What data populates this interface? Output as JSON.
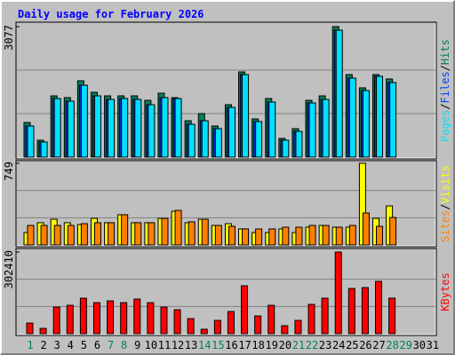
{
  "chart_data": [
    {
      "type": "bar",
      "title": "Daily usage for February 2026",
      "separator": "/",
      "ylim": [
        0,
        3077
      ],
      "yticks": [
        3077
      ],
      "series": [
        {
          "name": "Hits",
          "color": "#00805c",
          "values": [
            816,
            398,
            1444,
            1402,
            1800,
            1528,
            1444,
            1444,
            1444,
            1339,
            1507,
            1402,
            858,
            1026,
            733,
            1235,
            2009,
            900,
            1381,
            440,
            670,
            1339,
            1444,
            3077,
            1946,
            1633,
            1946,
            1842,
            null,
            null,
            null
          ]
        },
        {
          "name": "Files",
          "color": "#0040ff",
          "values": [
            733,
            356,
            1381,
            1319,
            1695,
            1444,
            1360,
            1381,
            1360,
            1235,
            1402,
            1381,
            774,
            858,
            670,
            1172,
            1946,
            837,
            1298,
            398,
            607,
            1277,
            1360,
            2993,
            1863,
            1570,
            1905,
            1758,
            null,
            null,
            null
          ]
        },
        {
          "name": "Pages",
          "color": "#00e0ff",
          "values": [
            733,
            356,
            1381,
            1319,
            1695,
            1444,
            1360,
            1381,
            1360,
            1235,
            1402,
            1381,
            774,
            858,
            670,
            1172,
            1946,
            837,
            1298,
            398,
            607,
            1277,
            1360,
            2993,
            1863,
            1570,
            1905,
            1758,
            null,
            null,
            null
          ]
        }
      ]
    },
    {
      "type": "bar",
      "separator": "/",
      "ylim": [
        0,
        749
      ],
      "yticks": [
        749
      ],
      "series": [
        {
          "name": "Visits",
          "color": "#ffff00",
          "values": [
            114,
            204,
            236,
            204,
            187,
            244,
            204,
            277,
            204,
            204,
            244,
            309,
            204,
            236,
            179,
            195,
            147,
            114,
            114,
            147,
            114,
            163,
            179,
            163,
            163,
            749,
            244,
            358,
            null,
            null,
            null
          ]
        },
        {
          "name": "Sites",
          "color": "#ff8000",
          "values": [
            179,
            179,
            179,
            179,
            195,
            204,
            204,
            277,
            204,
            204,
            244,
            317,
            212,
            236,
            179,
            171,
            147,
            147,
            147,
            163,
            163,
            179,
            179,
            163,
            179,
            293,
            171,
            252,
            null,
            null,
            null
          ]
        }
      ]
    },
    {
      "type": "bar",
      "ylim": [
        0,
        302410
      ],
      "yticks": [
        302410
      ],
      "categories": [
        "1",
        "2",
        "3",
        "4",
        "5",
        "6",
        "7",
        "8",
        "9",
        "10",
        "11",
        "12",
        "13",
        "14",
        "15",
        "16",
        "17",
        "18",
        "19",
        "20",
        "21",
        "22",
        "23",
        "24",
        "25",
        "26",
        "27",
        "28",
        "29",
        "30",
        "31"
      ],
      "label_colors": [
        "#00805c",
        "#000000",
        "#000000",
        "#000000",
        "#000000",
        "#000000",
        "#00805c",
        "#00805c",
        "#000000",
        "#000000",
        "#000000",
        "#000000",
        "#000000",
        "#00805c",
        "#00805c",
        "#000000",
        "#000000",
        "#000000",
        "#000000",
        "#000000",
        "#00805c",
        "#00805c",
        "#000000",
        "#000000",
        "#000000",
        "#000000",
        "#000000",
        "#00805c",
        "#00805c",
        "#000000",
        "#000000"
      ],
      "series": [
        {
          "name": "KBytes",
          "color": "#ff0000",
          "values": [
            39445,
            19722,
            98600,
            105200,
            131500,
            115000,
            121600,
            115000,
            128200,
            115000,
            98600,
            88750,
            55900,
            16400,
            49300,
            82200,
            177500,
            65700,
            105200,
            29600,
            49300,
            108500,
            131500,
            302410,
            167600,
            170900,
            193900,
            131500,
            null,
            null,
            null
          ]
        }
      ]
    }
  ]
}
